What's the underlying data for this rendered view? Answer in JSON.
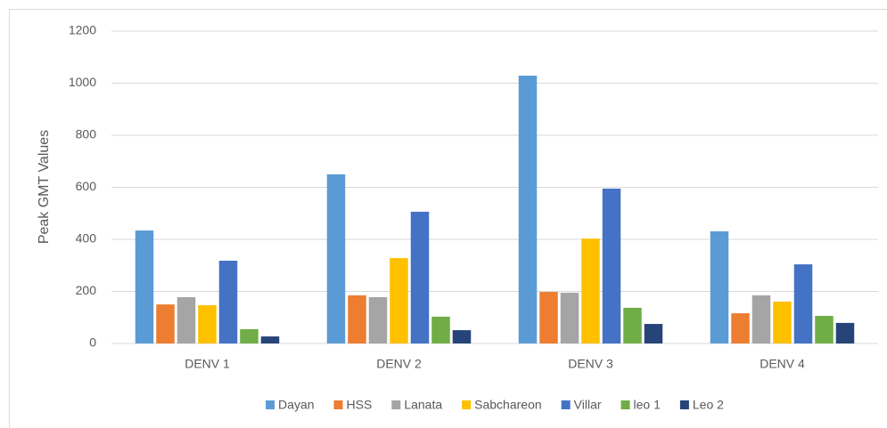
{
  "chart_data": {
    "type": "bar",
    "y_label": "Peak GMT Values",
    "categories": [
      "DENV 1",
      "DENV 2",
      "DENV 3",
      "DENV 4"
    ],
    "series": [
      {
        "name": "Dayan",
        "color": "#5b9bd5",
        "values": [
          434,
          650,
          1029,
          431
        ]
      },
      {
        "name": "HSS",
        "color": "#ed7d31",
        "values": [
          150,
          185,
          198,
          116
        ]
      },
      {
        "name": "Lanata",
        "color": "#a5a5a5",
        "values": [
          178,
          178,
          195,
          185
        ]
      },
      {
        "name": "Sabchareon",
        "color": "#ffc000",
        "values": [
          147,
          328,
          403,
          161
        ]
      },
      {
        "name": "Villar",
        "color": "#4472c4",
        "values": [
          318,
          506,
          595,
          304
        ]
      },
      {
        "name": "leo 1",
        "color": "#70ad47",
        "values": [
          55,
          103,
          137,
          106
        ]
      },
      {
        "name": "Leo 2",
        "color": "#264478",
        "values": [
          27,
          51,
          75,
          79
        ]
      }
    ],
    "ylim": [
      0,
      1200
    ],
    "yticks": [
      0,
      200,
      400,
      600,
      800,
      1000,
      1200
    ],
    "grid": true,
    "legend": "bottom"
  }
}
